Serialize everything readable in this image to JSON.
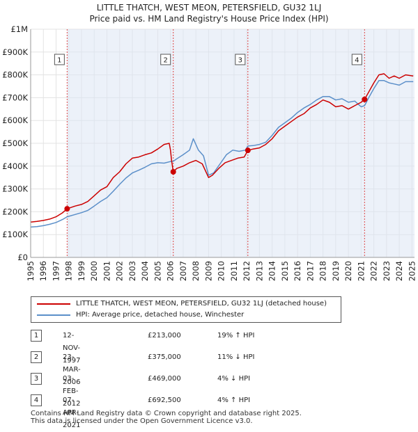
{
  "chart_data": {
    "type": "line",
    "title": "LITTLE THATCH, WEST MEON, PETERSFIELD, GU32 1LJ",
    "subtitle": "Price paid vs. HM Land Registry's House Price Index (HPI)",
    "xlim": [
      1995,
      2025.2
    ],
    "ylim": [
      0,
      1000000
    ],
    "yticks": [
      {
        "value": 0,
        "label": "£0"
      },
      {
        "value": 100000,
        "label": "£100K"
      },
      {
        "value": 200000,
        "label": "£200K"
      },
      {
        "value": 300000,
        "label": "£300K"
      },
      {
        "value": 400000,
        "label": "£400K"
      },
      {
        "value": 500000,
        "label": "£500K"
      },
      {
        "value": 600000,
        "label": "£600K"
      },
      {
        "value": 700000,
        "label": "£700K"
      },
      {
        "value": 800000,
        "label": "£800K"
      },
      {
        "value": 900000,
        "label": "£900K"
      },
      {
        "value": 1000000,
        "label": "£1M"
      }
    ],
    "xticks": [
      "1995",
      "1996",
      "1997",
      "1998",
      "1999",
      "2000",
      "2001",
      "2002",
      "2003",
      "2004",
      "2005",
      "2006",
      "2007",
      "2008",
      "2009",
      "2010",
      "2011",
      "2012",
      "2013",
      "2014",
      "2015",
      "2016",
      "2017",
      "2018",
      "2019",
      "2020",
      "2021",
      "2022",
      "2023",
      "2024",
      "2025"
    ],
    "series": [
      {
        "name": "LITTLE THATCH, WEST MEON, PETERSFIELD, GU32 1LJ (detached house)",
        "color": "#cc0000",
        "points": [
          [
            1995.0,
            155000
          ],
          [
            1995.5,
            158000
          ],
          [
            1996.0,
            162000
          ],
          [
            1996.5,
            168000
          ],
          [
            1997.0,
            178000
          ],
          [
            1997.5,
            195000
          ],
          [
            1997.87,
            213000
          ],
          [
            1998.5,
            225000
          ],
          [
            1999.0,
            232000
          ],
          [
            1999.5,
            245000
          ],
          [
            2000.0,
            270000
          ],
          [
            2000.5,
            295000
          ],
          [
            2001.0,
            310000
          ],
          [
            2001.5,
            350000
          ],
          [
            2002.0,
            375000
          ],
          [
            2002.5,
            410000
          ],
          [
            2003.0,
            435000
          ],
          [
            2003.5,
            440000
          ],
          [
            2004.0,
            450000
          ],
          [
            2004.5,
            458000
          ],
          [
            2005.0,
            475000
          ],
          [
            2005.5,
            495000
          ],
          [
            2005.9,
            500000
          ],
          [
            2006.0,
            470000
          ],
          [
            2006.1,
            420000
          ],
          [
            2006.22,
            375000
          ],
          [
            2006.5,
            390000
          ],
          [
            2007.0,
            400000
          ],
          [
            2007.5,
            415000
          ],
          [
            2008.0,
            425000
          ],
          [
            2008.5,
            410000
          ],
          [
            2009.0,
            350000
          ],
          [
            2009.3,
            360000
          ],
          [
            2009.8,
            390000
          ],
          [
            2010.3,
            415000
          ],
          [
            2010.8,
            425000
          ],
          [
            2011.3,
            435000
          ],
          [
            2011.8,
            440000
          ],
          [
            2012.09,
            469000
          ],
          [
            2012.5,
            475000
          ],
          [
            2013.0,
            480000
          ],
          [
            2013.5,
            495000
          ],
          [
            2014.0,
            520000
          ],
          [
            2014.5,
            555000
          ],
          [
            2015.0,
            575000
          ],
          [
            2015.5,
            595000
          ],
          [
            2016.0,
            615000
          ],
          [
            2016.5,
            630000
          ],
          [
            2017.0,
            655000
          ],
          [
            2017.5,
            670000
          ],
          [
            2018.0,
            690000
          ],
          [
            2018.5,
            680000
          ],
          [
            2019.0,
            660000
          ],
          [
            2019.5,
            665000
          ],
          [
            2020.0,
            650000
          ],
          [
            2020.5,
            665000
          ],
          [
            2021.0,
            680000
          ],
          [
            2021.27,
            692500
          ],
          [
            2021.6,
            725000
          ],
          [
            2022.0,
            765000
          ],
          [
            2022.4,
            800000
          ],
          [
            2022.8,
            805000
          ],
          [
            2023.2,
            785000
          ],
          [
            2023.6,
            795000
          ],
          [
            2024.0,
            785000
          ],
          [
            2024.5,
            800000
          ],
          [
            2025.1,
            795000
          ]
        ]
      },
      {
        "name": "HPI: Average price, detached house, Winchester",
        "color": "#5b8fc9",
        "points": [
          [
            1995.0,
            133000
          ],
          [
            1995.5,
            135000
          ],
          [
            1996.0,
            139000
          ],
          [
            1996.5,
            145000
          ],
          [
            1997.0,
            153000
          ],
          [
            1997.5,
            166000
          ],
          [
            1997.87,
            178000
          ],
          [
            1998.5,
            188000
          ],
          [
            1999.0,
            196000
          ],
          [
            1999.5,
            206000
          ],
          [
            2000.0,
            225000
          ],
          [
            2000.5,
            245000
          ],
          [
            2001.0,
            262000
          ],
          [
            2001.5,
            290000
          ],
          [
            2002.0,
            320000
          ],
          [
            2002.5,
            348000
          ],
          [
            2003.0,
            370000
          ],
          [
            2003.5,
            382000
          ],
          [
            2004.0,
            395000
          ],
          [
            2004.5,
            410000
          ],
          [
            2005.0,
            415000
          ],
          [
            2005.5,
            413000
          ],
          [
            2006.0,
            420000
          ],
          [
            2006.22,
            421000
          ],
          [
            2006.5,
            432000
          ],
          [
            2007.0,
            450000
          ],
          [
            2007.5,
            470000
          ],
          [
            2007.8,
            520000
          ],
          [
            2008.2,
            470000
          ],
          [
            2008.6,
            445000
          ],
          [
            2009.0,
            360000
          ],
          [
            2009.4,
            370000
          ],
          [
            2009.9,
            410000
          ],
          [
            2010.4,
            450000
          ],
          [
            2010.9,
            470000
          ],
          [
            2011.4,
            465000
          ],
          [
            2011.9,
            470000
          ],
          [
            2012.09,
            488000
          ],
          [
            2012.5,
            490000
          ],
          [
            2013.0,
            495000
          ],
          [
            2013.5,
            505000
          ],
          [
            2014.0,
            535000
          ],
          [
            2014.5,
            570000
          ],
          [
            2015.0,
            590000
          ],
          [
            2015.5,
            610000
          ],
          [
            2016.0,
            635000
          ],
          [
            2016.5,
            655000
          ],
          [
            2017.0,
            670000
          ],
          [
            2017.5,
            690000
          ],
          [
            2018.0,
            705000
          ],
          [
            2018.5,
            705000
          ],
          [
            2019.0,
            690000
          ],
          [
            2019.5,
            695000
          ],
          [
            2020.0,
            680000
          ],
          [
            2020.5,
            685000
          ],
          [
            2021.0,
            660000
          ],
          [
            2021.27,
            665000
          ],
          [
            2021.6,
            700000
          ],
          [
            2022.0,
            740000
          ],
          [
            2022.4,
            775000
          ],
          [
            2022.8,
            775000
          ],
          [
            2023.2,
            765000
          ],
          [
            2023.6,
            760000
          ],
          [
            2024.0,
            755000
          ],
          [
            2024.5,
            770000
          ],
          [
            2025.1,
            770000
          ]
        ]
      }
    ],
    "sales": [
      {
        "num": "1",
        "x": 1997.87,
        "price": 213000,
        "date": "12-NOV-1997",
        "price_label": "£213,000",
        "hpi": "19% ↑ HPI"
      },
      {
        "num": "2",
        "x": 2006.22,
        "price": 375000,
        "date": "23-MAR-2006",
        "price_label": "£375,000",
        "hpi": "11% ↓ HPI"
      },
      {
        "num": "3",
        "x": 2012.09,
        "price": 469000,
        "date": "03-FEB-2012",
        "price_label": "£469,000",
        "hpi": "4% ↓ HPI"
      },
      {
        "num": "4",
        "x": 2021.27,
        "price": 692500,
        "date": "07-APR-2021",
        "price_label": "£692,500",
        "hpi": "4% ↑ HPI"
      }
    ],
    "legend": {
      "property": "LITTLE THATCH, WEST MEON, PETERSFIELD, GU32 1LJ (detached house)",
      "hpi": "HPI: Average price, detached house, Winchester"
    },
    "footer_line1": "Contains HM Land Registry data © Crown copyright and database right 2025.",
    "footer_line2": "This data is licensed under the Open Government Licence v3.0."
  }
}
